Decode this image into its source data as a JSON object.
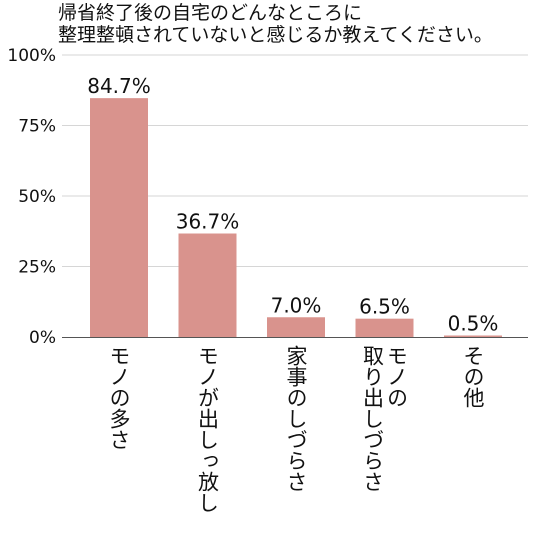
{
  "chart_data": {
    "type": "bar",
    "title": [
      "帰省終了後の自宅のどんなところに",
      "整理整頓されていないと感じるか教えてください。"
    ],
    "categories": [
      "モノの多さ",
      "モノが出しっ放し",
      "家事のしづらさ",
      "モノの取り出しづらさ",
      "その他"
    ],
    "category_lines": [
      [
        "モノの多さ"
      ],
      [
        "モノが出しっ放し"
      ],
      [
        "家事のしづらさ"
      ],
      [
        "モノの",
        "取り出しづらさ"
      ],
      [
        "その他"
      ]
    ],
    "values": [
      84.7,
      36.7,
      7.0,
      6.5,
      0.5
    ],
    "value_labels": [
      "84.7%",
      "36.7%",
      "7.0%",
      "6.5%",
      "0.5%"
    ],
    "ylim": [
      0,
      100
    ],
    "yticks": [
      0,
      25,
      50,
      75,
      100
    ],
    "ytick_labels": [
      "0%",
      "25%",
      "50%",
      "75%",
      "100%"
    ],
    "grid": true,
    "bar_color": "#d9938d",
    "grid_color": "#d6d6d6",
    "axis_color": "#555555"
  }
}
